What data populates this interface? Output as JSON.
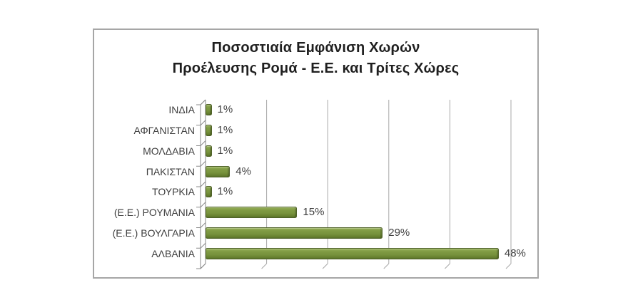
{
  "chart_data": {
    "type": "bar",
    "orientation": "horizontal",
    "style": "3d-excel",
    "title_line1": "Ποσοστιαία Εμφάνιση Χωρών",
    "title_line2": "Προέλευσης Ρομά - Ε.Ε. και Τρίτες Χώρες",
    "categories": [
      "ΙΝΔΙΑ",
      "ΑΦΓΑΝΙΣΤΑΝ",
      "ΜΟΛΔΑΒΙΑ",
      "ΠΑΚΙΣΤΑΝ",
      "ΤΟΥΡΚΙΑ",
      "(Ε.Ε.) ΡΟΥΜΑΝΙΑ",
      "(Ε.Ε.) ΒΟΥΛΓΑΡΙΑ",
      "ΑΛΒΑΝΙΑ"
    ],
    "values": [
      1,
      1,
      1,
      4,
      1,
      15,
      29,
      48
    ],
    "data_labels": [
      "1%",
      "1%",
      "1%",
      "4%",
      "1%",
      "15%",
      "29%",
      "48%"
    ],
    "xlabel": "",
    "ylabel": "",
    "xlim": [
      0,
      50
    ],
    "gridline_step": 10,
    "grid": true,
    "axis_tick_labels_visible": false,
    "legend": "none",
    "colors": {
      "bar": "#77923C",
      "bar_border": "#4F6228",
      "gridline": "#A8A8A8",
      "axis": "#8A8A8A",
      "frame_border": "#A6A6A6",
      "title_text": "#1F1F1F",
      "label_text": "#3F3F3F",
      "background": "#FFFFFF"
    }
  }
}
